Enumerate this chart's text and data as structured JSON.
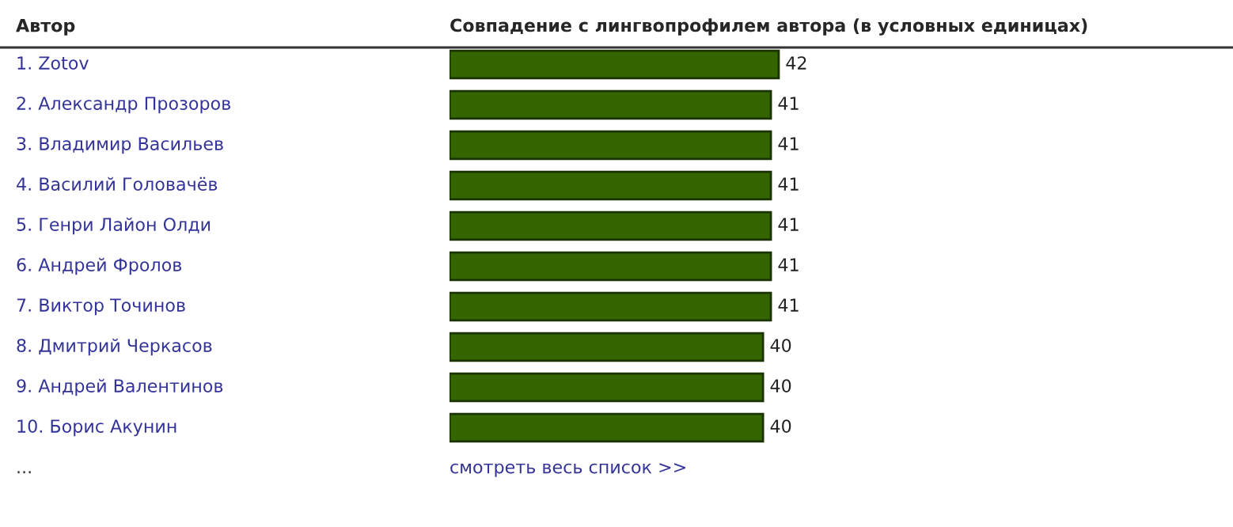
{
  "chart_data": {
    "type": "bar",
    "orientation": "horizontal",
    "title": "Совпадение с лингвопрофилем автора (в условных единицах)",
    "ylabel": "Автор",
    "categories": [
      "1. Zotov",
      "2. Александр Прозоров",
      "3. Владимир Васильев",
      "4. Василий Головачёв",
      "5. Генри Лайон Олди",
      "6. Андрей Фролов",
      "7. Виктор Точинов",
      "8. Дмитрий Черкасов",
      "9. Андрей Валентинов",
      "10. Борис Акунин"
    ],
    "values": [
      42,
      41,
      41,
      41,
      41,
      41,
      41,
      40,
      40,
      40
    ],
    "color": "#336600",
    "data_labels": true,
    "annotations": [
      "...",
      "смотреть весь список >>"
    ]
  }
}
